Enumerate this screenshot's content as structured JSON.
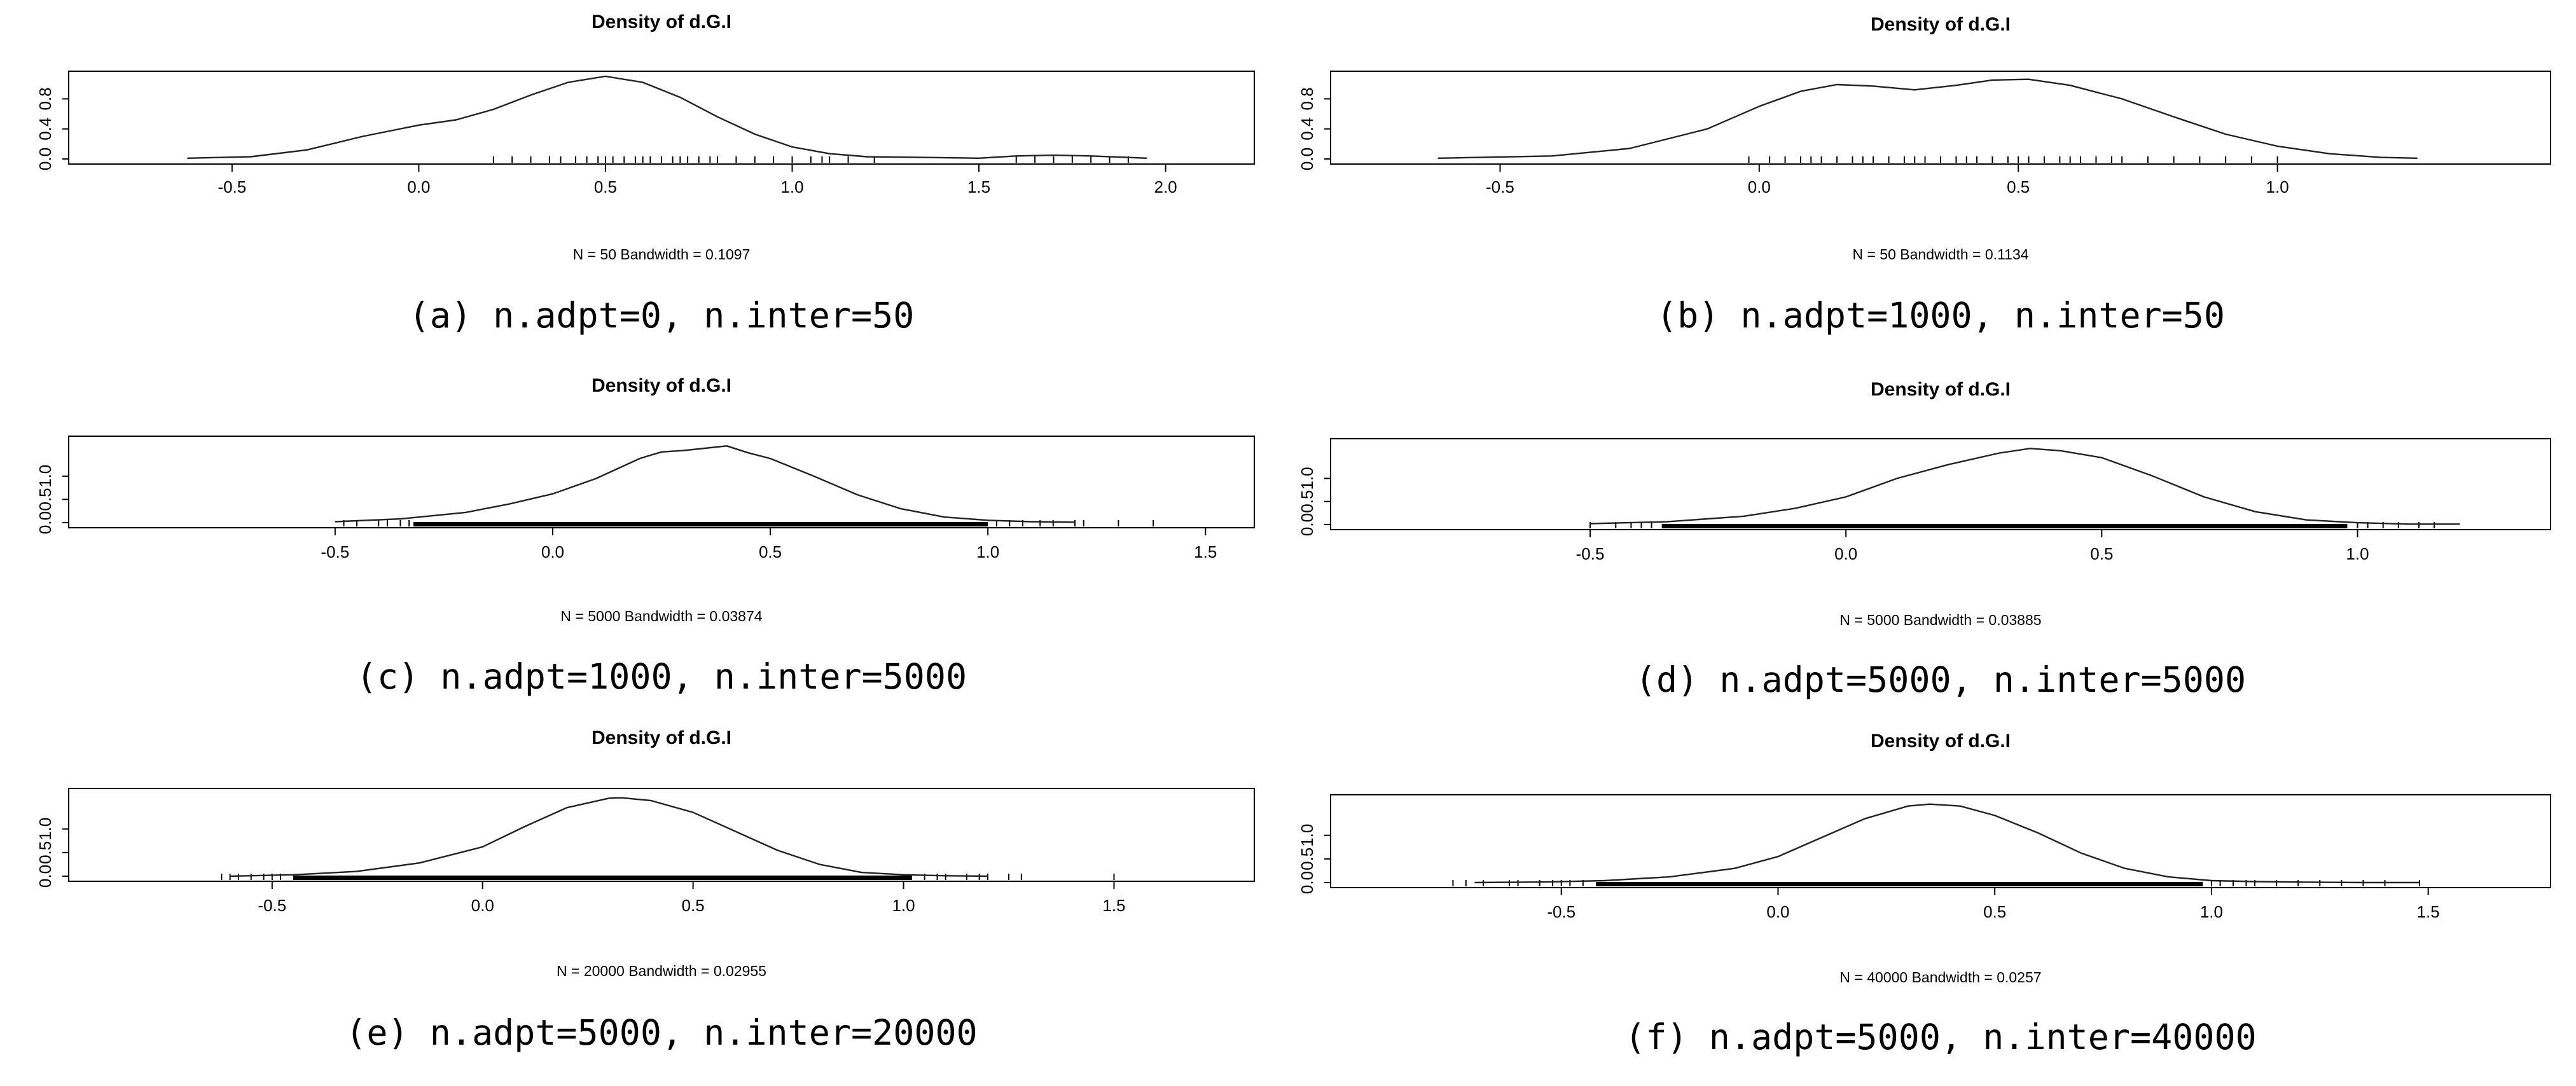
{
  "chart_data": [
    {
      "type": "line",
      "title": "Density of d.G.I",
      "note": "N = 50   Bandwidth = 0.1097",
      "caption": "(a) n.adpt=0, n.inter=50",
      "xlim": [
        -0.9,
        2.2
      ],
      "ylim": [
        0,
        1.1
      ],
      "xticks": [
        -0.5,
        0.0,
        0.5,
        1.0,
        1.5,
        2.0
      ],
      "yticks": [
        0.0,
        0.4,
        0.8
      ],
      "series": [
        {
          "x": [
            -0.62,
            -0.45,
            -0.3,
            -0.15,
            0.0,
            0.1,
            0.2,
            0.3,
            0.4,
            0.5,
            0.6,
            0.7,
            0.8,
            0.9,
            1.0,
            1.1,
            1.2,
            1.35,
            1.5,
            1.6,
            1.7,
            1.8,
            1.95
          ],
          "y": [
            0.01,
            0.03,
            0.12,
            0.3,
            0.45,
            0.52,
            0.66,
            0.85,
            1.02,
            1.1,
            1.02,
            0.82,
            0.56,
            0.33,
            0.16,
            0.07,
            0.03,
            0.02,
            0.01,
            0.04,
            0.05,
            0.04,
            0.01
          ]
        }
      ],
      "rug": [
        0.2,
        0.25,
        0.3,
        0.35,
        0.38,
        0.42,
        0.45,
        0.48,
        0.5,
        0.52,
        0.55,
        0.58,
        0.6,
        0.62,
        0.65,
        0.68,
        0.7,
        0.72,
        0.75,
        0.78,
        0.8,
        0.85,
        0.9,
        0.95,
        1.0,
        1.05,
        1.08,
        1.1,
        1.15,
        1.22,
        1.6,
        1.65,
        1.7,
        1.75,
        1.8,
        1.85,
        1.9
      ]
    },
    {
      "type": "line",
      "title": "Density of d.G.I",
      "note": "N = 50   Bandwidth = 0.1134",
      "caption": "(b) n.adpt=1000, n.inter=50",
      "xlim": [
        -0.8,
        1.5
      ],
      "ylim": [
        0,
        1.1
      ],
      "xticks": [
        -0.5,
        0.0,
        0.5,
        1.0
      ],
      "yticks": [
        0.0,
        0.4,
        0.8
      ],
      "series": [
        {
          "x": [
            -0.62,
            -0.4,
            -0.25,
            -0.1,
            0.0,
            0.08,
            0.15,
            0.22,
            0.3,
            0.38,
            0.45,
            0.52,
            0.6,
            0.7,
            0.8,
            0.9,
            1.0,
            1.1,
            1.2,
            1.27
          ],
          "y": [
            0.01,
            0.04,
            0.14,
            0.4,
            0.7,
            0.9,
            0.99,
            0.97,
            0.92,
            0.98,
            1.05,
            1.06,
            0.98,
            0.8,
            0.56,
            0.33,
            0.17,
            0.07,
            0.02,
            0.01
          ]
        }
      ],
      "rug": [
        -0.02,
        0.02,
        0.05,
        0.08,
        0.1,
        0.12,
        0.15,
        0.18,
        0.2,
        0.22,
        0.25,
        0.28,
        0.3,
        0.32,
        0.35,
        0.38,
        0.4,
        0.42,
        0.45,
        0.48,
        0.5,
        0.52,
        0.55,
        0.58,
        0.6,
        0.62,
        0.65,
        0.68,
        0.7,
        0.75,
        0.8,
        0.85,
        0.9,
        0.95,
        1.0
      ]
    },
    {
      "type": "line",
      "title": "Density of d.G.I",
      "note": "N = 5000   Bandwidth = 0.03874",
      "caption": "(c) n.adpt=1000, n.inter=5000",
      "xlim": [
        -1.08,
        1.58
      ],
      "ylim": [
        0,
        1.75
      ],
      "xticks": [
        -0.5,
        0.0,
        0.5,
        1.0,
        1.5
      ],
      "yticks": [
        0.0,
        0.5,
        1.0
      ],
      "series": [
        {
          "x": [
            -0.5,
            -0.35,
            -0.2,
            -0.1,
            0.0,
            0.1,
            0.2,
            0.25,
            0.3,
            0.35,
            0.4,
            0.45,
            0.5,
            0.6,
            0.7,
            0.8,
            0.9,
            1.0,
            1.1,
            1.2
          ],
          "y": [
            0.02,
            0.08,
            0.22,
            0.4,
            0.62,
            0.95,
            1.38,
            1.52,
            1.55,
            1.6,
            1.65,
            1.5,
            1.38,
            1.0,
            0.6,
            0.3,
            0.12,
            0.05,
            0.02,
            0.01
          ]
        }
      ],
      "rug": [
        -0.48,
        -0.45,
        -0.4,
        -0.38,
        -0.35,
        -0.33,
        1.02,
        1.05,
        1.08,
        1.12,
        1.15,
        1.2,
        1.22,
        1.3,
        1.38
      ],
      "rug_band": [
        -0.32,
        1.0
      ]
    },
    {
      "type": "line",
      "title": "Density of d.G.I",
      "note": "N = 5000   Bandwidth = 0.03885",
      "caption": "(d) n.adpt=5000, n.inter=5000",
      "xlim": [
        -0.98,
        1.35
      ],
      "ylim": [
        0,
        1.75
      ],
      "xticks": [
        -0.5,
        0.0,
        0.5,
        1.0
      ],
      "yticks": [
        0.0,
        0.5,
        1.0
      ],
      "series": [
        {
          "x": [
            -0.5,
            -0.35,
            -0.2,
            -0.1,
            0.0,
            0.1,
            0.2,
            0.3,
            0.36,
            0.42,
            0.5,
            0.6,
            0.7,
            0.8,
            0.9,
            1.0,
            1.1,
            1.2
          ],
          "y": [
            0.02,
            0.06,
            0.18,
            0.35,
            0.6,
            1.0,
            1.3,
            1.55,
            1.65,
            1.6,
            1.45,
            1.05,
            0.6,
            0.28,
            0.1,
            0.04,
            0.01,
            0.01
          ]
        }
      ],
      "rug": [
        -0.5,
        -0.45,
        -0.42,
        -0.4,
        -0.38,
        1.0,
        1.02,
        1.05,
        1.08,
        1.12,
        1.15
      ],
      "rug_band": [
        -0.36,
        0.98
      ]
    },
    {
      "type": "line",
      "title": "Density of d.G.I",
      "note": "N = 20000   Bandwidth = 0.02955",
      "caption": "(e) n.adpt=5000, n.inter=20000",
      "xlim": [
        -0.95,
        1.8
      ],
      "ylim": [
        0,
        1.75
      ],
      "xticks": [
        -0.5,
        0.0,
        0.5,
        1.0,
        1.5
      ],
      "yticks": [
        0.0,
        0.5,
        1.0
      ],
      "series": [
        {
          "x": [
            -0.6,
            -0.45,
            -0.3,
            -0.15,
            0.0,
            0.1,
            0.2,
            0.3,
            0.33,
            0.4,
            0.5,
            0.6,
            0.7,
            0.8,
            0.9,
            1.0,
            1.1,
            1.2
          ],
          "y": [
            0.0,
            0.03,
            0.1,
            0.28,
            0.62,
            1.05,
            1.45,
            1.65,
            1.66,
            1.6,
            1.35,
            0.95,
            0.55,
            0.25,
            0.08,
            0.03,
            0.01,
            0.0
          ]
        }
      ],
      "rug": [
        -0.62,
        -0.6,
        -0.58,
        -0.55,
        -0.52,
        -0.5,
        -0.48,
        1.05,
        1.08,
        1.1,
        1.15,
        1.18,
        1.2,
        1.25,
        1.28,
        1.5
      ],
      "rug_band": [
        -0.45,
        1.02
      ]
    },
    {
      "type": "line",
      "title": "Density of d.G.I",
      "note": "N = 40000   Bandwidth = 0.0257",
      "caption": "(f) n.adpt=5000, n.inter=40000",
      "xlim": [
        -1.0,
        1.75
      ],
      "ylim": [
        0,
        1.75
      ],
      "xticks": [
        -0.5,
        0.0,
        0.5,
        1.0,
        1.5
      ],
      "yticks": [
        0.0,
        0.5,
        1.0
      ],
      "series": [
        {
          "x": [
            -0.7,
            -0.55,
            -0.4,
            -0.25,
            -0.1,
            0.0,
            0.1,
            0.2,
            0.3,
            0.35,
            0.42,
            0.5,
            0.6,
            0.7,
            0.8,
            0.9,
            1.0,
            1.1,
            1.2,
            1.35,
            1.48
          ],
          "y": [
            0.0,
            0.01,
            0.04,
            0.12,
            0.3,
            0.55,
            0.95,
            1.35,
            1.62,
            1.66,
            1.62,
            1.42,
            1.05,
            0.62,
            0.3,
            0.12,
            0.04,
            0.02,
            0.01,
            0.0,
            0.0
          ]
        }
      ],
      "rug": [
        -0.75,
        -0.72,
        -0.68,
        -0.62,
        -0.6,
        -0.55,
        -0.52,
        -0.5,
        -0.48,
        -0.45,
        1.0,
        1.02,
        1.05,
        1.08,
        1.1,
        1.15,
        1.2,
        1.25,
        1.3,
        1.35,
        1.4,
        1.48
      ],
      "rug_band": [
        -0.42,
        0.98
      ]
    }
  ]
}
